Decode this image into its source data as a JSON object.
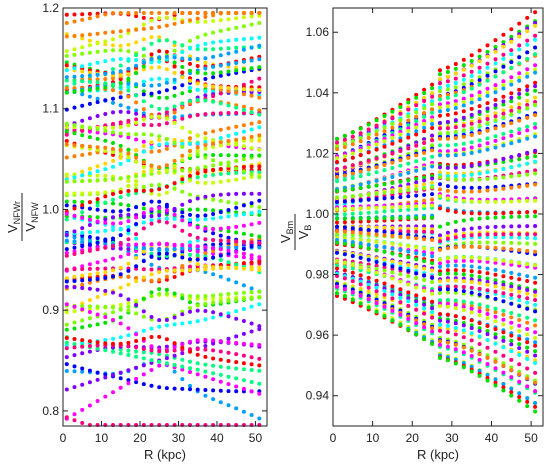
{
  "chart_data": [
    {
      "type": "scatter",
      "xlabel": "R  (kpc)",
      "ylabel": {
        "num_main": "V",
        "num_sub": "NFWr",
        "den_main": "V",
        "den_sub": "NFW"
      },
      "xlim": [
        0,
        53
      ],
      "ylim": [
        0.785,
        1.2
      ],
      "xticks": [
        0,
        10,
        20,
        30,
        40,
        50
      ],
      "yticks": [
        0.8,
        0.9,
        1.0,
        1.1,
        1.2
      ],
      "ytick_labels": [
        "0.8",
        "0.9",
        "1.0",
        "1.1",
        "1.2"
      ],
      "grid": false,
      "x_points": [
        1,
        3,
        5,
        7,
        9,
        11,
        13,
        15,
        17,
        19,
        21,
        23,
        25,
        27,
        29,
        31,
        33,
        35,
        37,
        39,
        41,
        43,
        45,
        47,
        49,
        51
      ],
      "series_count": 80,
      "series_start_values": [
        1.19,
        1.18,
        1.17,
        1.16,
        1.15,
        1.14,
        1.13,
        1.12,
        1.11,
        1.1,
        1.09,
        1.08,
        1.07,
        1.06,
        1.05,
        1.04,
        1.03,
        1.02,
        1.01,
        1.0,
        0.99,
        0.98,
        0.97,
        0.96,
        0.95,
        0.94,
        0.93,
        0.92,
        0.91,
        0.9,
        0.89,
        0.88,
        0.87,
        0.86,
        0.85,
        0.84,
        0.82,
        0.8,
        0.79
      ],
      "notes": "~80 dotted series; values scatter between ~0.79 and ~1.19, several curves cross near R≈25 kpc"
    },
    {
      "type": "scatter",
      "xlabel": "R  (kpc)",
      "ylabel": {
        "num_main": "V",
        "num_sub": "Bm",
        "den_main": "V",
        "den_sub": "B"
      },
      "xlim": [
        0,
        53
      ],
      "ylim": [
        0.93,
        1.068
      ],
      "xticks": [
        0,
        10,
        20,
        30,
        40,
        50
      ],
      "yticks": [
        0.94,
        0.96,
        0.98,
        1.0,
        1.02,
        1.04,
        1.06
      ],
      "ytick_labels": [
        "0.94",
        "0.96",
        "0.98",
        "1.00",
        "1.02",
        "1.04",
        "1.06"
      ],
      "grid": false,
      "x_points": [
        1,
        3,
        5,
        7,
        9,
        11,
        13,
        15,
        17,
        19,
        21,
        23,
        25,
        27,
        29,
        31,
        33,
        35,
        37,
        39,
        41,
        43,
        45,
        47,
        49,
        51
      ],
      "series_count": 80,
      "series_end_values": [
        1.066,
        1.06,
        1.05,
        1.04,
        1.03,
        1.02,
        1.01,
        1.0,
        0.99,
        0.98,
        0.97,
        0.96,
        0.95,
        0.94,
        0.933
      ],
      "notes": "fan of dotted series starting between ~0.972 and ~1.025 near R=1 and spreading to ~0.933–1.066 at R=51, with a kink near R≈27 kpc"
    }
  ],
  "colors": [
    "#ff0000",
    "#ff7f00",
    "#ffd700",
    "#c8ff00",
    "#7fff00",
    "#00e000",
    "#00ff80",
    "#00ffff",
    "#00a0ff",
    "#0000ff",
    "#7f00ff",
    "#ff00ff",
    "#ff0080"
  ]
}
